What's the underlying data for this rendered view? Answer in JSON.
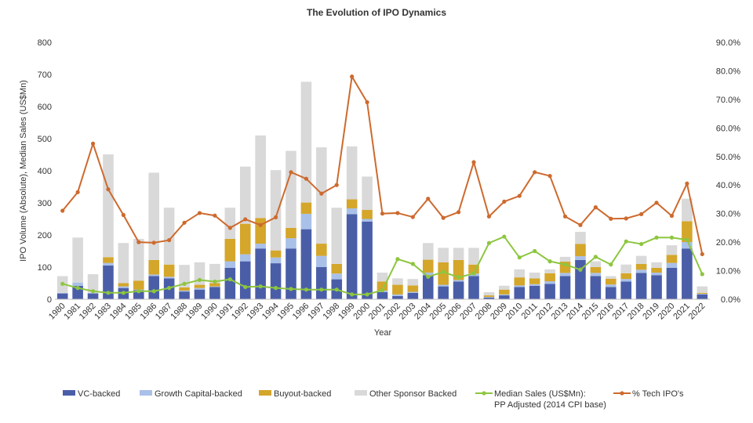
{
  "chart_data": {
    "type": "bar",
    "title": "The Evolution of IPO Dynamics",
    "xlabel": "Year",
    "ylabel": "IPO Volume (Absolute), Median Sales (US$Mn)",
    "ylim": [
      0,
      800
    ],
    "y_ticks": [
      "0",
      "100",
      "200",
      "300",
      "400",
      "500",
      "600",
      "700",
      "800"
    ],
    "y2lim": [
      0,
      0.9
    ],
    "y2_ticks": [
      "0.0%",
      "10.0%",
      "20.0%",
      "30.0%",
      "40.0%",
      "50.0%",
      "60.0%",
      "70.0%",
      "80.0%",
      "90.0%"
    ],
    "categories": [
      "1980",
      "1981",
      "1982",
      "1983",
      "1984",
      "1985",
      "1986",
      "1987",
      "1988",
      "1989",
      "1990",
      "1991",
      "1992",
      "1993",
      "1994",
      "1995",
      "1996",
      "1997",
      "1998",
      "1999",
      "2000",
      "2001",
      "2002",
      "2003",
      "2004",
      "2005",
      "2006",
      "2007",
      "2008",
      "2009",
      "2010",
      "2011",
      "2012",
      "2013",
      "2014",
      "2015",
      "2016",
      "2017",
      "2018",
      "2019",
      "2020",
      "2021",
      "2022"
    ],
    "stacked": true,
    "legend_position": "bottom",
    "grid": false,
    "series": [
      {
        "name": "VC-backed",
        "kind": "bar",
        "color": "#4a5ea8",
        "values": [
          18,
          42,
          18,
          105,
          35,
          28,
          72,
          65,
          24,
          30,
          38,
          98,
          118,
          158,
          112,
          158,
          218,
          100,
          62,
          265,
          242,
          22,
          10,
          20,
          75,
          40,
          55,
          72,
          5,
          12,
          38,
          42,
          48,
          72,
          122,
          72,
          38,
          55,
          82,
          75,
          98,
          158,
          15
        ]
      },
      {
        "name": "Growth Capital-backed",
        "kind": "bar",
        "color": "#a9c0e8",
        "values": [
          2,
          10,
          2,
          8,
          5,
          2,
          5,
          5,
          3,
          5,
          2,
          20,
          22,
          15,
          18,
          32,
          48,
          35,
          18,
          18,
          8,
          5,
          5,
          3,
          8,
          5,
          5,
          8,
          2,
          3,
          5,
          5,
          8,
          10,
          12,
          10,
          8,
          8,
          10,
          8,
          15,
          20,
          2
        ]
      },
      {
        "name": "Buyout-backed",
        "kind": "bar",
        "color": "#d4a62a",
        "values": [
          0,
          0,
          0,
          18,
          10,
          28,
          45,
          38,
          10,
          10,
          10,
          70,
          95,
          80,
          22,
          32,
          35,
          38,
          30,
          28,
          28,
          28,
          30,
          20,
          40,
          70,
          62,
          28,
          5,
          15,
          25,
          18,
          25,
          35,
          38,
          18,
          18,
          18,
          18,
          15,
          25,
          65,
          3
        ]
      },
      {
        "name": "Other Sponsor Backed",
        "kind": "bar",
        "color": "#d9d9d9",
        "values": [
          52,
          140,
          58,
          320,
          125,
          130,
          272,
          177,
          70,
          70,
          60,
          97,
          178,
          257,
          250,
          240,
          376,
          300,
          175,
          165,
          104,
          28,
          20,
          20,
          52,
          45,
          38,
          52,
          10,
          12,
          25,
          18,
          12,
          15,
          38,
          18,
          8,
          27,
          25,
          17,
          30,
          70,
          20
        ]
      },
      {
        "name": "Median Sales (US$Mn):\nPP Adjusted (2014 CPI base)",
        "kind": "line",
        "axis": "left",
        "color": "#8dc63f",
        "values": [
          48,
          35,
          25,
          20,
          20,
          25,
          25,
          35,
          48,
          60,
          55,
          62,
          38,
          40,
          35,
          32,
          30,
          30,
          30,
          15,
          15,
          28,
          125,
          110,
          70,
          85,
          68,
          80,
          175,
          195,
          130,
          150,
          118,
          108,
          92,
          132,
          108,
          180,
          172,
          192,
          192,
          185,
          78
        ]
      },
      {
        "name": "% Tech IPO's",
        "kind": "line",
        "axis": "right",
        "color": "#cd6a2e",
        "values": [
          0.31,
          0.375,
          0.545,
          0.385,
          0.295,
          0.2,
          0.198,
          0.207,
          0.268,
          0.302,
          0.293,
          0.25,
          0.28,
          0.26,
          0.287,
          0.445,
          0.422,
          0.37,
          0.4,
          0.78,
          0.69,
          0.3,
          0.302,
          0.288,
          0.352,
          0.285,
          0.305,
          0.48,
          0.29,
          0.342,
          0.362,
          0.445,
          0.432,
          0.29,
          0.26,
          0.322,
          0.282,
          0.283,
          0.298,
          0.338,
          0.292,
          0.405,
          0.158
        ]
      }
    ]
  }
}
